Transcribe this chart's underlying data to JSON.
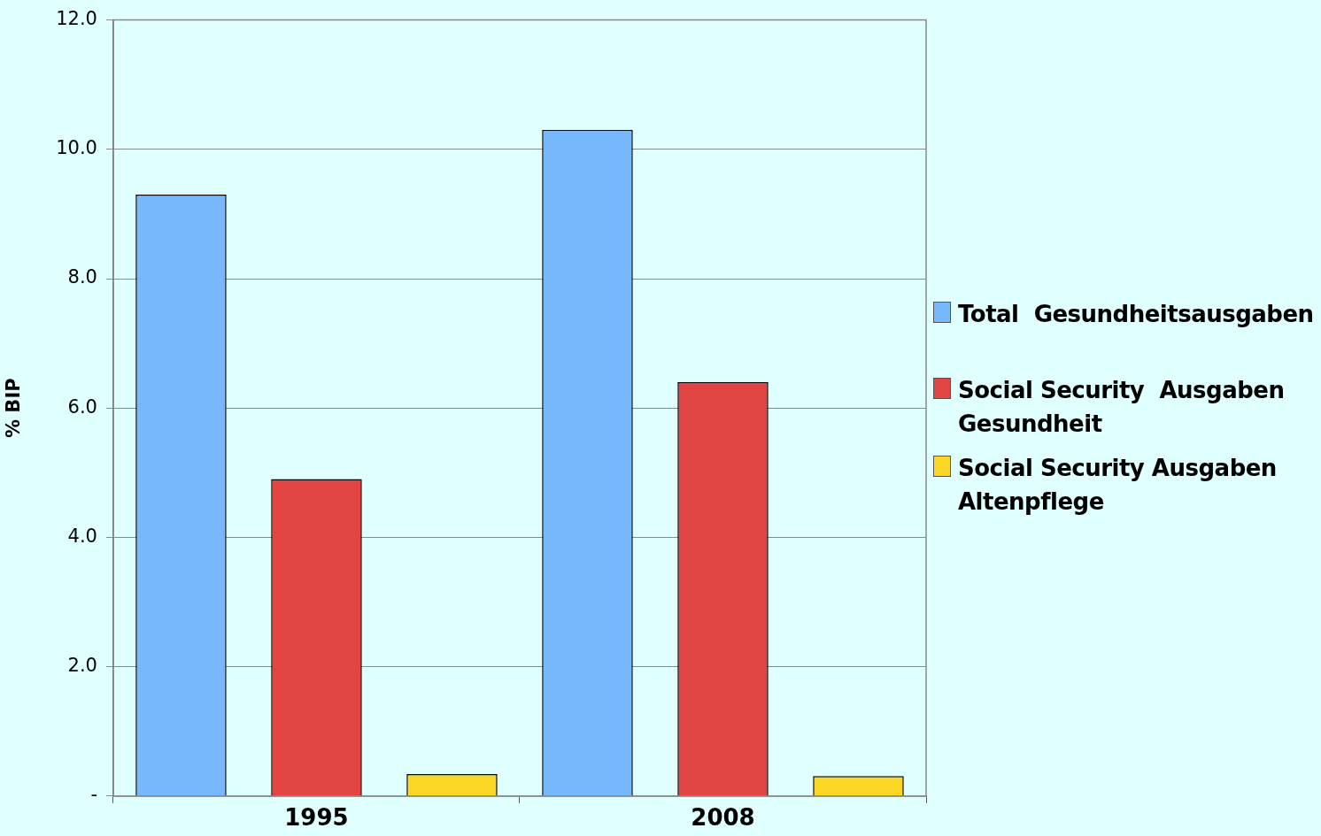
{
  "chart_data": {
    "type": "bar",
    "ylabel": "% BIP",
    "categories": [
      "1995",
      "2008"
    ],
    "series": [
      {
        "name": "Total  Gesundheitsausgaben",
        "color": "#77b7fb",
        "values": [
          9.3,
          10.3
        ]
      },
      {
        "name": "Social Security  Ausgaben Gesundheit",
        "color": "#e24541",
        "values": [
          4.9,
          6.4
        ]
      },
      {
        "name": "Social Security Ausgaben Altenpflege",
        "color": "#fbd624",
        "values": [
          0.34,
          0.31
        ]
      }
    ],
    "ylim": [
      0,
      12
    ],
    "yticks": [
      {
        "value": 0,
        "label": "-"
      },
      {
        "value": 2,
        "label": "2.0"
      },
      {
        "value": 4,
        "label": "4.0"
      },
      {
        "value": 6,
        "label": "6.0"
      },
      {
        "value": 8,
        "label": "8.0"
      },
      {
        "value": 10,
        "label": "10.0"
      },
      {
        "value": 12,
        "label": "12.0"
      }
    ],
    "grid": "y",
    "legend": "right"
  }
}
